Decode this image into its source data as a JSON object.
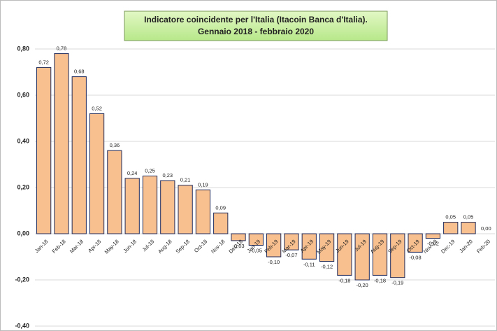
{
  "chart_data": {
    "type": "bar",
    "title": [
      "Indicatore coincidente per l'Italia (Itacoin Banca d'Italia).",
      "Gennaio 2018 - febbraio 2020"
    ],
    "categories": [
      "Jan-18",
      "Feb-18",
      "Mar-18",
      "Apr-18",
      "May-18",
      "Jun-18",
      "Jul-18",
      "Aug-18",
      "Sep-18",
      "Oct-18",
      "Nov-18",
      "Dec-18",
      "Jan-19",
      "Feb-19",
      "Mar-19",
      "Apr-19",
      "May-19",
      "Jun-19",
      "Jul-19",
      "Aug-19",
      "Sep-19",
      "Oct-19",
      "Nov-19",
      "Dec-19",
      "Jan-20",
      "Feb-20"
    ],
    "values": [
      0.72,
      0.78,
      0.68,
      0.52,
      0.36,
      0.24,
      0.25,
      0.23,
      0.21,
      0.19,
      0.09,
      -0.03,
      -0.05,
      -0.1,
      -0.07,
      -0.11,
      -0.12,
      -0.18,
      -0.2,
      -0.18,
      -0.19,
      -0.08,
      -0.02,
      0.05,
      0.05,
      0.0
    ],
    "value_labels": [
      "0,72",
      "0,78",
      "0,68",
      "0,52",
      "0,36",
      "0,24",
      "0,25",
      "0,23",
      "0,21",
      "0,19",
      "0,09",
      "-0,03",
      "-0,05",
      "-0,10",
      "-0,07",
      "-0,11",
      "-0,12",
      "-0,18",
      "-0,20",
      "-0,18",
      "-0,19",
      "-0,08",
      "-0,02",
      "0,05",
      "0,05",
      "0,00"
    ],
    "color": "#f9c08f",
    "edge_color": "#1f2a5a",
    "ylim": [
      -0.4,
      0.8
    ],
    "yticks": [
      {
        "value": -0.4,
        "label": "-0,40"
      },
      {
        "value": -0.2,
        "label": "-0,20"
      },
      {
        "value": 0,
        "label": "0,00"
      },
      {
        "value": 0.2,
        "label": "0,20"
      },
      {
        "value": 0.4,
        "label": "0,40"
      },
      {
        "value": 0.6,
        "label": "0,60"
      },
      {
        "value": 0.8,
        "label": "0,80"
      }
    ],
    "grid": true
  }
}
